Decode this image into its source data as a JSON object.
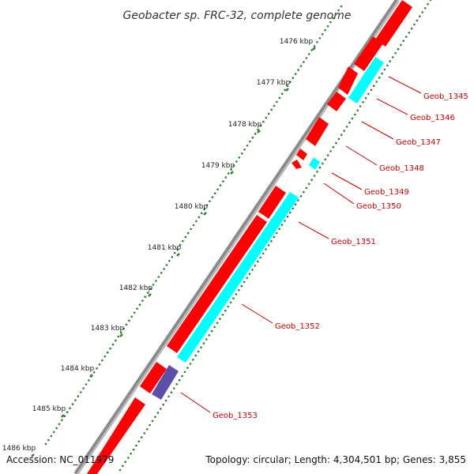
{
  "title": "Geobacter sp. FRC-32, complete genome",
  "accession": "Accession: NC_011979",
  "topology": "Topology: circular; Length: 4,304,501 bp; Genes: 3,855",
  "ruler_labels": [
    "1476 kbp",
    "1477 kbp",
    "1478 kbp",
    "1479 kbp",
    "1480 kbp",
    "1481 kbp",
    "1482 kbp",
    "1483 kbp",
    "1484 kbp",
    "1485 kbp",
    "1486 kbp"
  ],
  "gene_labels": [
    "Geob_1345",
    "Geob_1346",
    "Geob_1347",
    "Geob_1348",
    "Geob_1349",
    "Geob_1350",
    "Geob_1351",
    "Geob_1352",
    "Geob_1353"
  ],
  "colors": {
    "cds": "#ff0000",
    "rna": "#00ffff",
    "other": "#5b4fa8",
    "backbone": "#808080",
    "ruler_tick": "#2e7d32",
    "label": "#cc0000"
  }
}
